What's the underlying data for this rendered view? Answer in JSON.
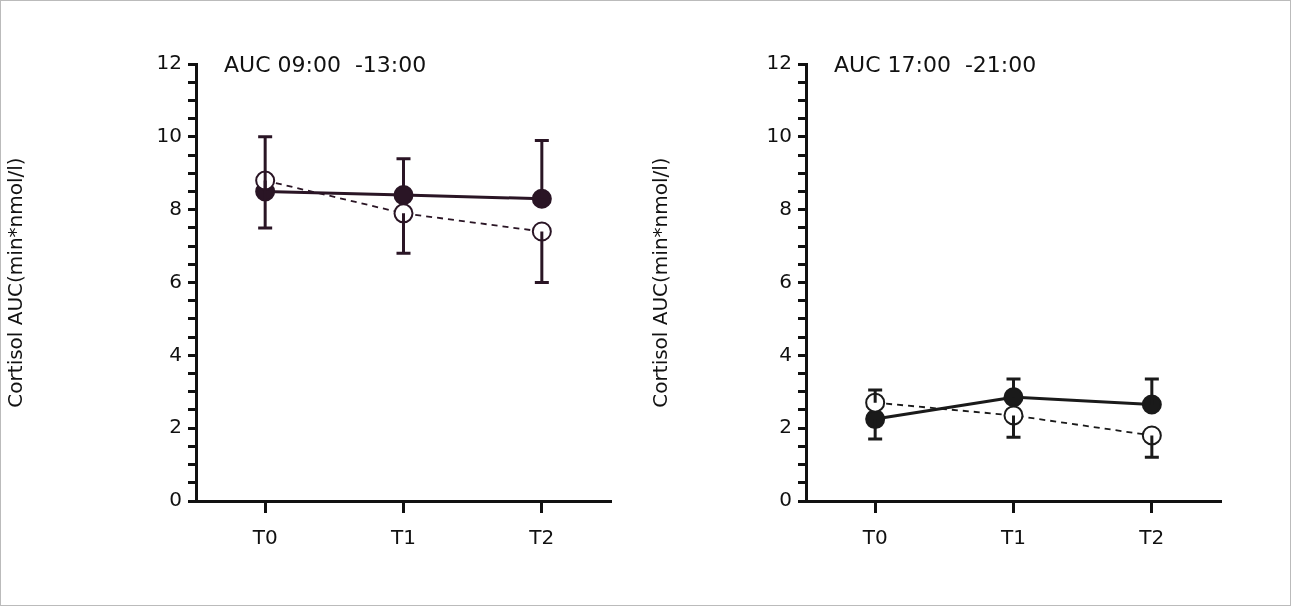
{
  "chart_data": [
    {
      "type": "line",
      "title": "AUC 09:00  -13:00",
      "ylabel": "Cortisol AUC(min*nmol/l)",
      "categories": [
        "T0",
        "T1",
        "T2"
      ],
      "ylim": [
        0,
        12
      ],
      "yticks": [
        0,
        {
          "value": 0.5,
          "label": null
        },
        {
          "value": 1,
          "label": null
        },
        {
          "value": 1.5,
          "label": null
        },
        2,
        {
          "value": 2.5,
          "label": null
        },
        {
          "value": 3,
          "label": null
        },
        {
          "value": 3.5,
          "label": null
        },
        4,
        {
          "value": 4.5,
          "label": null
        },
        {
          "value": 5,
          "label": null
        },
        {
          "value": 5.5,
          "label": null
        },
        6,
        {
          "value": 6.5,
          "label": null
        },
        {
          "value": 7,
          "label": null
        },
        {
          "value": 7.5,
          "label": null
        },
        8,
        {
          "value": 8.5,
          "label": null
        },
        {
          "value": 9,
          "label": null
        },
        {
          "value": 9.5,
          "label": null
        },
        10,
        {
          "value": 10.5,
          "label": null
        },
        {
          "value": 11,
          "label": null
        },
        {
          "value": 11.5,
          "label": null
        },
        12
      ],
      "grid": false,
      "legend": false,
      "marker": "circle",
      "series": [
        {
          "color": "#2a1525",
          "line_style": "solid",
          "values": [
            8.5,
            8.4,
            8.3
          ],
          "errors": [
            [
              8.5,
              10
            ],
            [
              8.4,
              9.4
            ],
            [
              8.3,
              9.9
            ]
          ]
        },
        {
          "color": "#2a1525",
          "line_style": "dashed",
          "values": [
            8.8,
            7.9,
            7.4
          ],
          "errors": [
            [
              7.5,
              8.8
            ],
            [
              6.8,
              7.9
            ],
            [
              6.0,
              7.4
            ]
          ]
        }
      ]
    },
    {
      "type": "line",
      "title": "AUC 17:00  -21:00",
      "ylabel": "Cortisol AUC(min*nmol/l)",
      "categories": [
        "T0",
        "T1",
        "T2"
      ],
      "ylim": [
        0,
        12
      ],
      "yticks": [
        0,
        {
          "value": 0.5,
          "label": null
        },
        {
          "value": 1,
          "label": null
        },
        {
          "value": 1.5,
          "label": null
        },
        2,
        {
          "value": 2.5,
          "label": null
        },
        {
          "value": 3,
          "label": null
        },
        {
          "value": 3.5,
          "label": null
        },
        4,
        {
          "value": 4.5,
          "label": null
        },
        {
          "value": 5,
          "label": null
        },
        {
          "value": 5.5,
          "label": null
        },
        6,
        {
          "value": 6.5,
          "label": null
        },
        {
          "value": 7,
          "label": null
        },
        {
          "value": 7.5,
          "label": null
        },
        8,
        {
          "value": 8.5,
          "label": null
        },
        {
          "value": 9,
          "label": null
        },
        {
          "value": 9.5,
          "label": null
        },
        10,
        {
          "value": 10.5,
          "label": null
        },
        {
          "value": 11,
          "label": null
        },
        {
          "value": 11.5,
          "label": null
        },
        12
      ],
      "grid": false,
      "legend": false,
      "marker": "circle",
      "series": [
        {
          "color": "#1a1a1a",
          "line_style": "solid",
          "values": [
            2.25,
            2.85,
            2.65
          ],
          "errors": [
            [
              1.7,
              2.25
            ],
            [
              2.85,
              3.35
            ],
            [
              2.65,
              3.35
            ]
          ]
        },
        {
          "color": "#1a1a1a",
          "line_style": "dashed",
          "values": [
            2.7,
            2.35,
            1.8
          ],
          "errors": [
            [
              2.7,
              3.05
            ],
            [
              1.75,
              2.35
            ],
            [
              1.2,
              1.8
            ]
          ]
        }
      ]
    }
  ]
}
